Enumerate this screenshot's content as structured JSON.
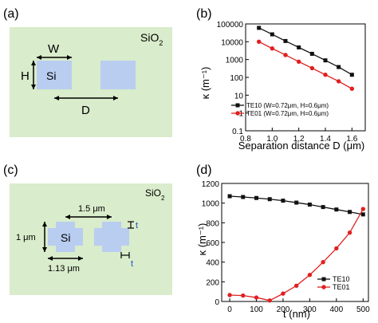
{
  "panels": {
    "a": {
      "label": "(a)",
      "material": "SiO",
      "material_sub": "2",
      "core_label": "Si",
      "w_label": "W",
      "h_label": "H",
      "d_label": "D"
    },
    "c": {
      "label": "(c)",
      "material": "SiO",
      "material_sub": "2",
      "core_label": "Si",
      "dim_1": "1.5 μm",
      "dim_2": "1 μm",
      "dim_3": "1.13 μm",
      "t1": "t",
      "t2": "t"
    }
  },
  "colors": {
    "cladding": "#d9eccb",
    "silicon": "#b9cdf1",
    "te10": "#111111",
    "te01": "#e02020"
  },
  "chart_data": [
    {
      "panel_label": "(b)",
      "type": "line",
      "ylabel": "κ (m⁻¹)",
      "xlabel": "Separation distance D (μm)",
      "xlim": [
        0.8,
        1.7
      ],
      "ylim": [
        0.1,
        100000
      ],
      "yscale": "log",
      "xticks": [
        "0.8",
        "1.0",
        "1.2",
        "1.4",
        "1.6"
      ],
      "yticks": [
        "0.1",
        "1",
        "10",
        "100",
        "1000",
        "10000",
        "100000"
      ],
      "legend_position": "bottom-left",
      "series": [
        {
          "name": "TE10 (W=0.72μm, H=0.6μm)",
          "x": [
            0.9,
            1.0,
            1.1,
            1.2,
            1.3,
            1.4,
            1.5,
            1.6
          ],
          "y": [
            60000,
            26000,
            11000,
            4800,
            2100,
            900,
            380,
            140
          ]
        },
        {
          "name": "TE01 (W=0.72μm, H=0.6μm)",
          "x": [
            0.9,
            1.0,
            1.1,
            1.2,
            1.3,
            1.4,
            1.5,
            1.6
          ],
          "y": [
            10000,
            4200,
            1800,
            760,
            330,
            140,
            60,
            23
          ]
        }
      ]
    },
    {
      "panel_label": "(d)",
      "type": "line",
      "ylabel": "κ (m⁻¹)",
      "xlabel": "t (nm)",
      "xlim": [
        -30,
        520
      ],
      "ylim": [
        0,
        1200
      ],
      "xticks": [
        "0",
        "100",
        "200",
        "300",
        "400",
        "500"
      ],
      "yticks": [
        "0",
        "200",
        "400",
        "600",
        "800",
        "1000",
        "1200"
      ],
      "legend_position": "bottom-right",
      "series": [
        {
          "name": "TE10",
          "x": [
            0,
            50,
            100,
            150,
            200,
            250,
            300,
            350,
            400,
            450,
            500
          ],
          "y": [
            1070,
            1062,
            1052,
            1040,
            1025,
            1005,
            985,
            960,
            935,
            910,
            885
          ]
        },
        {
          "name": "TE01",
          "x": [
            0,
            50,
            100,
            150,
            200,
            250,
            300,
            350,
            400,
            450,
            500
          ],
          "y": [
            65,
            60,
            40,
            10,
            80,
            160,
            270,
            400,
            540,
            700,
            940
          ]
        }
      ]
    }
  ]
}
